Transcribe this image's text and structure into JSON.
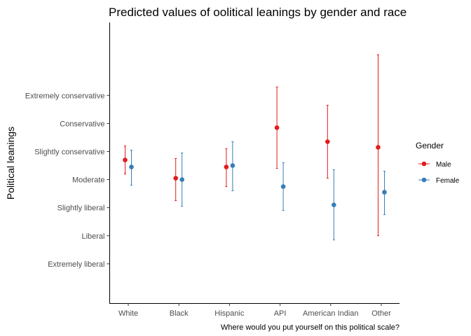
{
  "chart_data": {
    "type": "scatter",
    "title": "Predicted values of oolitical leanings by gender and race",
    "xlabel": "Where would you put yourself on this political scale?",
    "ylabel": "Political leanings",
    "categories": [
      "White",
      "Black",
      "Hispanic",
      "API",
      "American Indian",
      "Other"
    ],
    "y_ticks": [
      {
        "value": 1,
        "label": "Extremely liberal"
      },
      {
        "value": 2,
        "label": "Liberal"
      },
      {
        "value": 3,
        "label": "Slightly liberal"
      },
      {
        "value": 4,
        "label": "Moderate"
      },
      {
        "value": 5,
        "label": "Slightly conservative"
      },
      {
        "value": 6,
        "label": "Conservative"
      },
      {
        "value": 7,
        "label": "Extremely conservative"
      }
    ],
    "ylim": [
      -0.4,
      9.6
    ],
    "grid": false,
    "legend": {
      "title": "Gender",
      "position": "right"
    },
    "series": [
      {
        "name": "Male",
        "color": "#e41a1c",
        "values": [
          4.7,
          4.05,
          4.45,
          5.85,
          5.35,
          5.15
        ],
        "lower": [
          4.2,
          3.25,
          3.75,
          4.4,
          4.05,
          2.0
        ],
        "upper": [
          5.2,
          4.75,
          5.1,
          7.3,
          6.65,
          8.45
        ]
      },
      {
        "name": "Female",
        "color": "#377eb8",
        "values": [
          4.45,
          4.0,
          4.5,
          3.75,
          3.1,
          3.55
        ],
        "lower": [
          3.8,
          3.05,
          3.6,
          2.9,
          1.85,
          2.75
        ],
        "upper": [
          5.05,
          4.95,
          5.35,
          4.6,
          4.35,
          4.3
        ]
      }
    ]
  }
}
